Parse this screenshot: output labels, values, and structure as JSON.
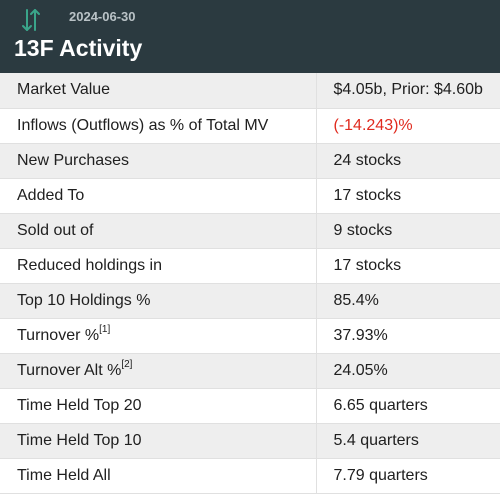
{
  "header": {
    "date": "2024-06-30",
    "title": "13F Activity",
    "icon": "up-down-arrows-icon",
    "icon_color": "#3aa58a",
    "background": "#2b3a40"
  },
  "rows": [
    {
      "label": "Market Value",
      "note": "",
      "value": "$4.05b, Prior: $4.60b"
    },
    {
      "label": "Inflows (Outflows) as % of Total MV",
      "note": "",
      "value": "(-14.243)%"
    },
    {
      "label": "New Purchases",
      "note": "",
      "value": "24 stocks"
    },
    {
      "label": "Added To",
      "note": "",
      "value": "17 stocks"
    },
    {
      "label": "Sold out of",
      "note": "",
      "value": "9 stocks"
    },
    {
      "label": "Reduced holdings in",
      "note": "",
      "value": "17 stocks"
    },
    {
      "label": "Top 10 Holdings %",
      "note": "",
      "value": "85.4%"
    },
    {
      "label": "Turnover %",
      "note": "[1]",
      "value": "37.93%"
    },
    {
      "label": "Turnover Alt %",
      "note": "[2]",
      "value": "24.05%"
    },
    {
      "label": "Time Held Top 20",
      "note": "",
      "value": "6.65 quarters"
    },
    {
      "label": "Time Held Top 10",
      "note": "",
      "value": "5.4 quarters"
    },
    {
      "label": "Time Held All",
      "note": "",
      "value": "7.79 quarters"
    }
  ],
  "colors": {
    "negative_value": "#e02a1e",
    "row_shade": "#eeeeee"
  }
}
